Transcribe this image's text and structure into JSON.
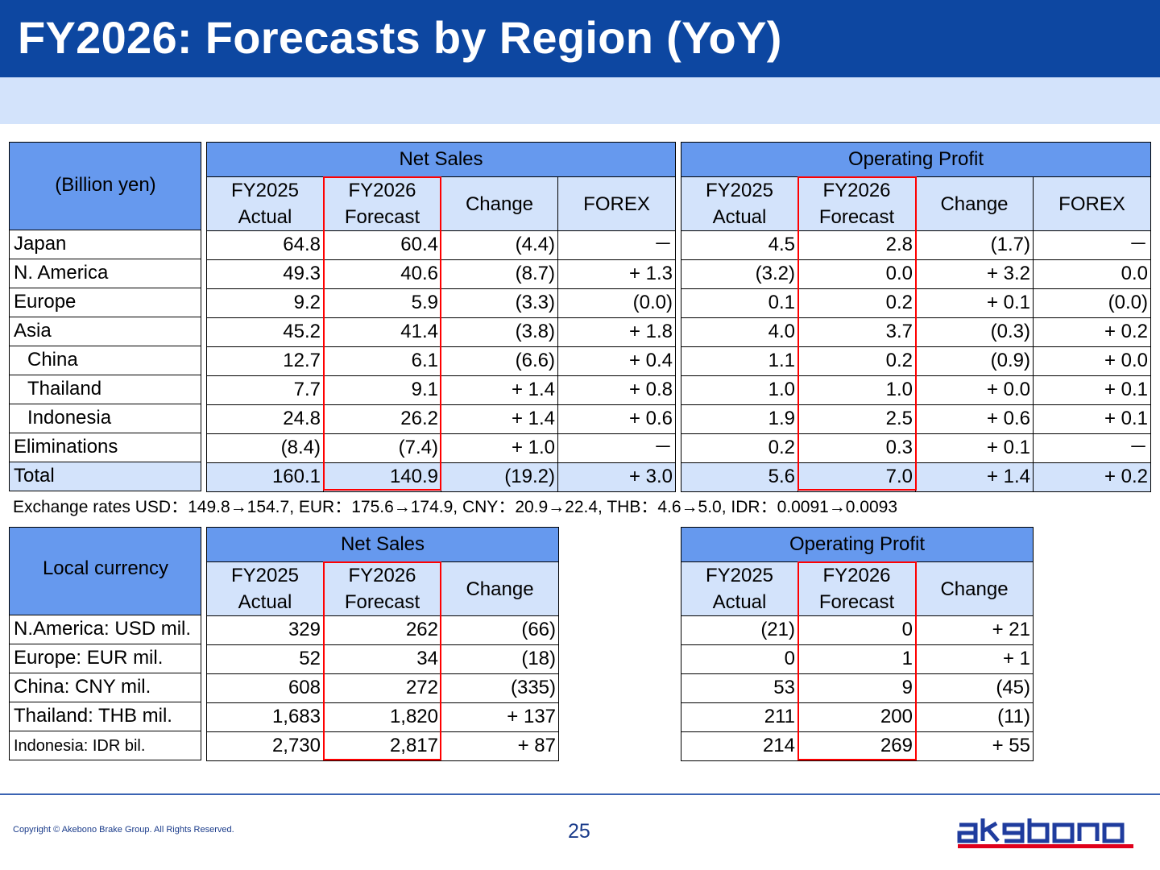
{
  "title": "FY2026: Forecasts by Region (YoY)",
  "units_label": "(Billion yen)",
  "groups": {
    "net_sales": "Net Sales",
    "operating_profit": "Operating Profit"
  },
  "columns": {
    "actual": "FY2025 Actual",
    "forecast": "FY2026 Forecast",
    "change": "Change",
    "forex": "FOREX"
  },
  "yen_rows": [
    {
      "label": "Japan",
      "ns": [
        "64.8",
        "60.4",
        "(4.4)",
        "－"
      ],
      "op": [
        "4.5",
        "2.8",
        "(1.7)",
        "－"
      ]
    },
    {
      "label": "N. America",
      "ns": [
        "49.3",
        "40.6",
        "(8.7)",
        "+ 1.3"
      ],
      "op": [
        "(3.2)",
        "0.0",
        "+ 3.2",
        "0.0"
      ]
    },
    {
      "label": "Europe",
      "ns": [
        "9.2",
        "5.9",
        "(3.3)",
        "(0.0)"
      ],
      "op": [
        "0.1",
        "0.2",
        "+ 0.1",
        "(0.0)"
      ]
    },
    {
      "label": "Asia",
      "ns": [
        "45.2",
        "41.4",
        "(3.8)",
        "+ 1.8"
      ],
      "op": [
        "4.0",
        "3.7",
        "(0.3)",
        "+ 0.2"
      ]
    },
    {
      "label": "China",
      "ns": [
        "12.7",
        "6.1",
        "(6.6)",
        "+ 0.4"
      ],
      "op": [
        "1.1",
        "0.2",
        "(0.9)",
        "+ 0.0"
      ]
    },
    {
      "label": "Thailand",
      "ns": [
        "7.7",
        "9.1",
        "+ 1.4",
        "+ 0.8"
      ],
      "op": [
        "1.0",
        "1.0",
        "+ 0.0",
        "+ 0.1"
      ]
    },
    {
      "label": "Indonesia",
      "ns": [
        "24.8",
        "26.2",
        "+ 1.4",
        "+ 0.6"
      ],
      "op": [
        "1.9",
        "2.5",
        "+ 0.6",
        "+ 0.1"
      ]
    },
    {
      "label": "Eliminations",
      "ns": [
        "(8.4)",
        "(7.4)",
        "+ 1.0",
        "－"
      ],
      "op": [
        "0.2",
        "0.3",
        "+ 0.1",
        "－"
      ]
    },
    {
      "label": "Total",
      "ns": [
        "160.1",
        "140.9",
        "(19.2)",
        "+ 3.0"
      ],
      "op": [
        "5.6",
        "7.0",
        "+ 1.4",
        "+ 0.2"
      ]
    }
  ],
  "exchange_rates": "Exchange rates  USD：149.8→154.7, EUR：175.6→174.9, CNY：20.9→22.4, THB：4.6→5.0, IDR：0.0091→0.0093",
  "local_label": "Local currency",
  "local_rows": [
    {
      "label": "N.America: USD mil.",
      "ns": [
        "329",
        "262",
        "(66)"
      ],
      "op": [
        "(21)",
        "0",
        "+ 21"
      ]
    },
    {
      "label": "Europe: EUR mil.",
      "ns": [
        "52",
        "34",
        "(18)"
      ],
      "op": [
        "0",
        "1",
        "+ 1"
      ]
    },
    {
      "label": "China: CNY mil.",
      "ns": [
        "608",
        "272",
        "(335)"
      ],
      "op": [
        "53",
        "9",
        "(45)"
      ]
    },
    {
      "label": "Thailand: THB mil.",
      "ns": [
        "1,683",
        "1,820",
        "+ 137"
      ],
      "op": [
        "211",
        "200",
        "(11)"
      ]
    },
    {
      "label": "Indonesia: IDR bil.",
      "ns": [
        "2,730",
        "2,817",
        "+ 87"
      ],
      "op": [
        "214",
        "269",
        "+ 55"
      ]
    }
  ],
  "footer": {
    "copyright": "Copyright © Akebono Brake Group. All Rights Reserved.",
    "page_number": "25",
    "logo_text": "akebono",
    "logo_color": "#1f3c9e",
    "logo_underline_color": "#e0001b"
  },
  "colors": {
    "title_bar": "#0d47a1",
    "header_dark": "#6699ee",
    "header_light": "#d3e3fb",
    "highlight_box": "#ff0000"
  }
}
